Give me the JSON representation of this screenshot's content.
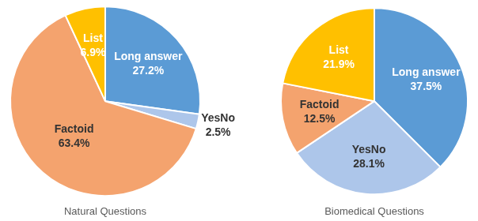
{
  "chart_data": [
    {
      "type": "pie",
      "title": "Natural Questions",
      "categories": [
        "Long answer",
        "YesNo",
        "Factoid",
        "List"
      ],
      "values": [
        27.2,
        2.5,
        63.4,
        6.9
      ],
      "value_labels": [
        "27.2%",
        "2.5%",
        "63.4%",
        "6.9%"
      ],
      "colors": [
        "#5b9bd5",
        "#adc6ea",
        "#f4a36e",
        "#ffc000"
      ],
      "data_labels": true,
      "legend": false
    },
    {
      "type": "pie",
      "title": "Biomedical Questions",
      "categories": [
        "Long answer",
        "YesNo",
        "Factoid",
        "List"
      ],
      "values": [
        37.5,
        28.1,
        12.5,
        21.9
      ],
      "value_labels": [
        "37.5%",
        "28.1%",
        "12.5%",
        "21.9%"
      ],
      "colors": [
        "#5b9bd5",
        "#adc6ea",
        "#f4a36e",
        "#ffc000"
      ],
      "data_labels": true,
      "legend": false
    }
  ]
}
